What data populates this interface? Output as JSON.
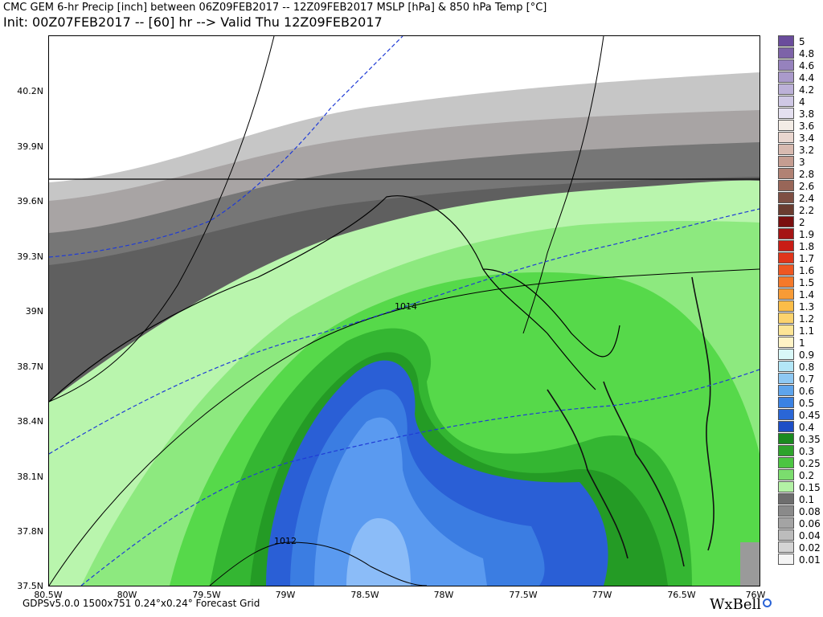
{
  "header": {
    "line1": "CMC GEM 6-hr Precip [inch] between 06Z09FEB2017 -- 12Z09FEB2017 MSLP [hPa] & 850 hPa Temp [°C]",
    "line2": "Init: 00Z07FEB2017 -- [60] hr --> Valid Thu 12Z09FEB2017"
  },
  "map": {
    "lat_labels": [
      "40.2N",
      "39.9N",
      "39.6N",
      "39.3N",
      "39N",
      "38.7N",
      "38.4N",
      "38.1N",
      "37.8N",
      "37.5N"
    ],
    "lon_labels": [
      "80.5W",
      "80W",
      "79.5W",
      "79W",
      "78.5W",
      "78W",
      "77.5W",
      "77W",
      "76.5W",
      "76W"
    ],
    "isobar_labels": [
      "1014",
      "1012"
    ],
    "precip_colors": {
      "0.15": "#b9f5ad",
      "0.2": "#8de97f",
      "0.25": "#56d94a",
      "0.3": "#34b632",
      "0.35": "#249b25",
      "0.4": "#2a5fd6",
      "0.45": "#3b7de2",
      "0.5": "#5a9af0",
      "0.6": "#8bbcf8",
      "gray_light": "#c6c6c6",
      "gray_mid": "#a8a4a4",
      "gray_dark": "#767676"
    }
  },
  "scale": {
    "labels": [
      "5",
      "4.8",
      "4.6",
      "4.4",
      "4.2",
      "4",
      "3.8",
      "3.6",
      "3.4",
      "3.2",
      "3",
      "2.8",
      "2.6",
      "2.4",
      "2.2",
      "2",
      "1.9",
      "1.8",
      "1.7",
      "1.6",
      "1.5",
      "1.4",
      "1.3",
      "1.2",
      "1.1",
      "1",
      "0.9",
      "0.8",
      "0.7",
      "0.6",
      "0.5",
      "0.45",
      "0.4",
      "0.35",
      "0.3",
      "0.25",
      "0.2",
      "0.15",
      "0.1",
      "0.08",
      "0.06",
      "0.04",
      "0.02",
      "0.01"
    ],
    "colors": [
      "#6a4c9c",
      "#7d63a8",
      "#9682bd",
      "#aa9acb",
      "#bcb1d8",
      "#cfc8e5",
      "#e4e0f0",
      "#f3ece6",
      "#e9d6cf",
      "#d8bab0",
      "#c59d91",
      "#b18274",
      "#986658",
      "#7e4f43",
      "#6a3c30",
      "#7a0f0f",
      "#a51414",
      "#c91d16",
      "#e0351a",
      "#ee5722",
      "#f5792a",
      "#f89b36",
      "#fbbd48",
      "#fcd36e",
      "#fde596",
      "#fff3c6",
      "#d9f8f8",
      "#b3e6f7",
      "#8ec8f3",
      "#5ea4ec",
      "#3b82e3",
      "#2a66d6",
      "#1d4ec6",
      "#1a8a1f",
      "#2ea32c",
      "#4cc542",
      "#7bdd6e",
      "#b3f1a5",
      "#6e6e6e",
      "#8a8a8a",
      "#a4a4a4",
      "#bcbcbc",
      "#d4d4d4",
      "#f4f4f4"
    ]
  },
  "footer": {
    "left": "GDPSv5.0.0 1500x751 0.24°x0.24° Forecast Grid",
    "brand": "WxBell"
  }
}
